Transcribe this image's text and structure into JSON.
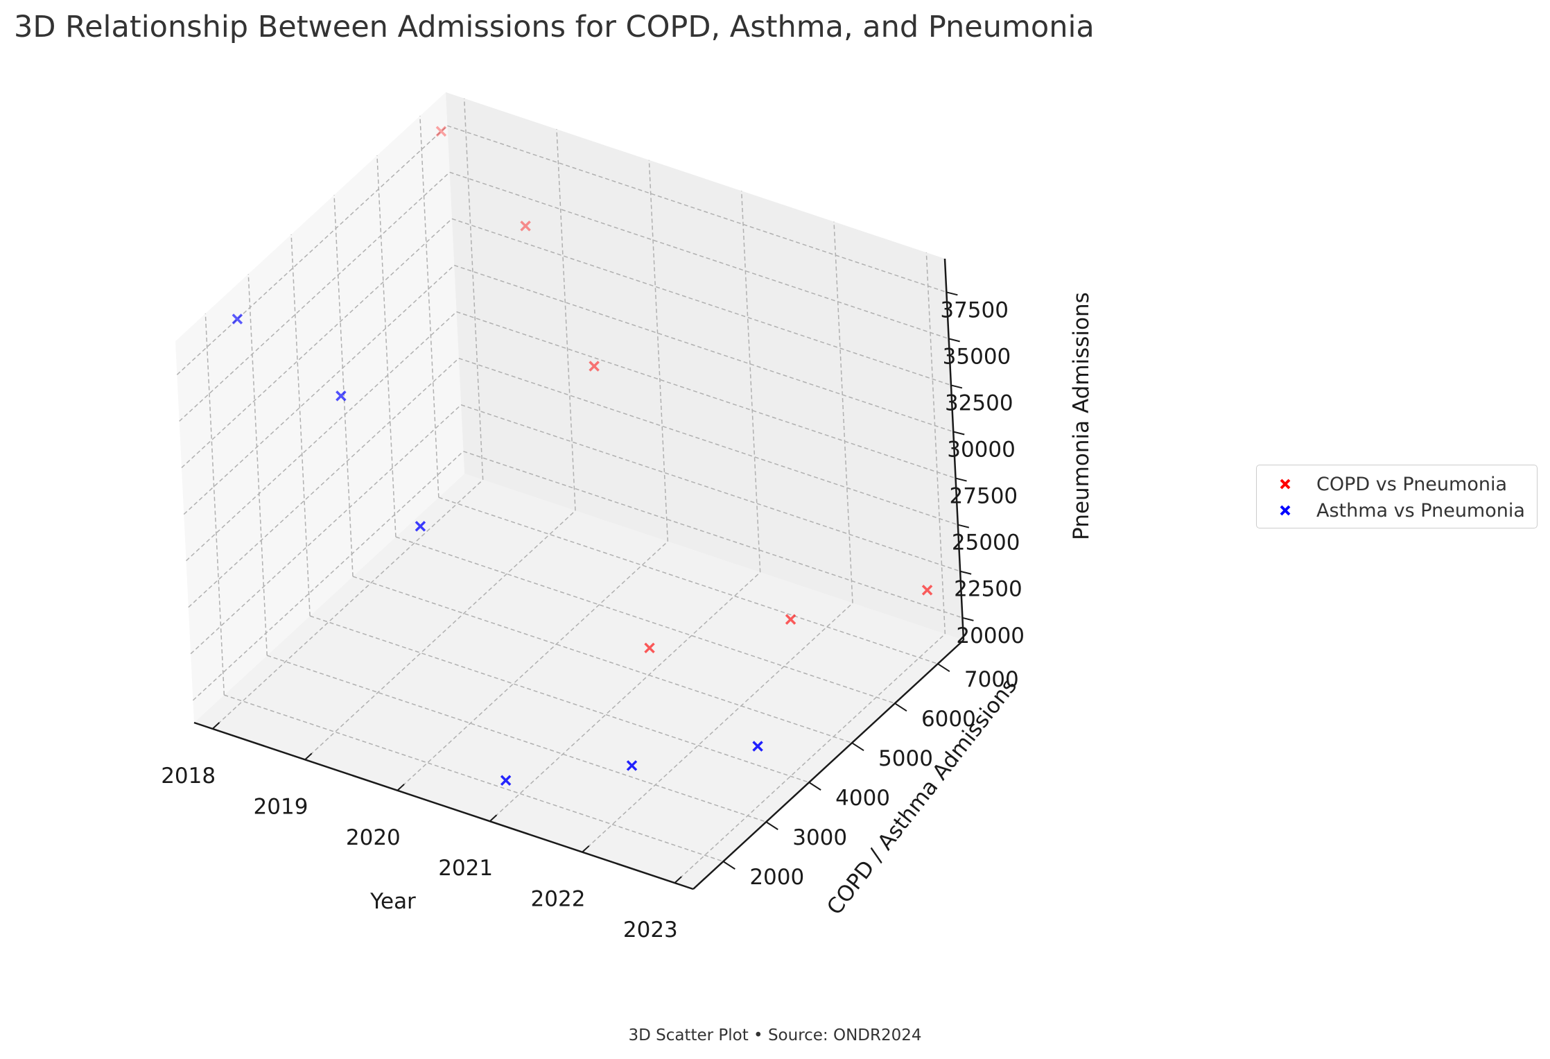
{
  "title": "3D Relationship Between Admissions for COPD, Asthma, and Pneumonia",
  "caption": "3D Scatter Plot • Source: ONDR2024",
  "chart_data": {
    "type": "scatter",
    "projection": "3d",
    "title": "3D Relationship Between Admissions for COPD, Asthma, and Pneumonia",
    "xlabel": "Year",
    "ylabel": "COPD / Asthma Admissions",
    "zlabel": "Pneumonia Admissions",
    "x_ticks": [
      "2018",
      "2019",
      "2020",
      "2021",
      "2022",
      "2023"
    ],
    "y_ticks": [
      "2000",
      "3000",
      "4000",
      "5000",
      "6000",
      "7000"
    ],
    "z_ticks": [
      "20000",
      "22500",
      "25000",
      "27500",
      "30000",
      "32500",
      "35000",
      "37500"
    ],
    "xlim": [
      2017.8,
      2023.2
    ],
    "ylim": [
      1300,
      7600
    ],
    "zlim": [
      18800,
      39300
    ],
    "grid": true,
    "legend_position": "right",
    "marker": "x",
    "series": [
      {
        "name": "COPD vs Pneumonia",
        "color": "#ff0000",
        "x": [
          2018,
          2019,
          2020,
          2021,
          2022,
          2023
        ],
        "y": [
          7050,
          6800,
          6150,
          5050,
          6200,
          7250
        ],
        "z": [
          38700,
          35800,
          31300,
          20150,
          20900,
          21900
        ]
      },
      {
        "name": "Asthma vs Pneumonia",
        "color": "#0000ff",
        "x": [
          2018,
          2019,
          2020,
          2021,
          2022,
          2023
        ],
        "y": [
          2300,
          2500,
          2100,
          1700,
          2500,
          3300
        ],
        "z": [
          38700,
          35800,
          31300,
          20150,
          20900,
          21900
        ]
      }
    ]
  }
}
